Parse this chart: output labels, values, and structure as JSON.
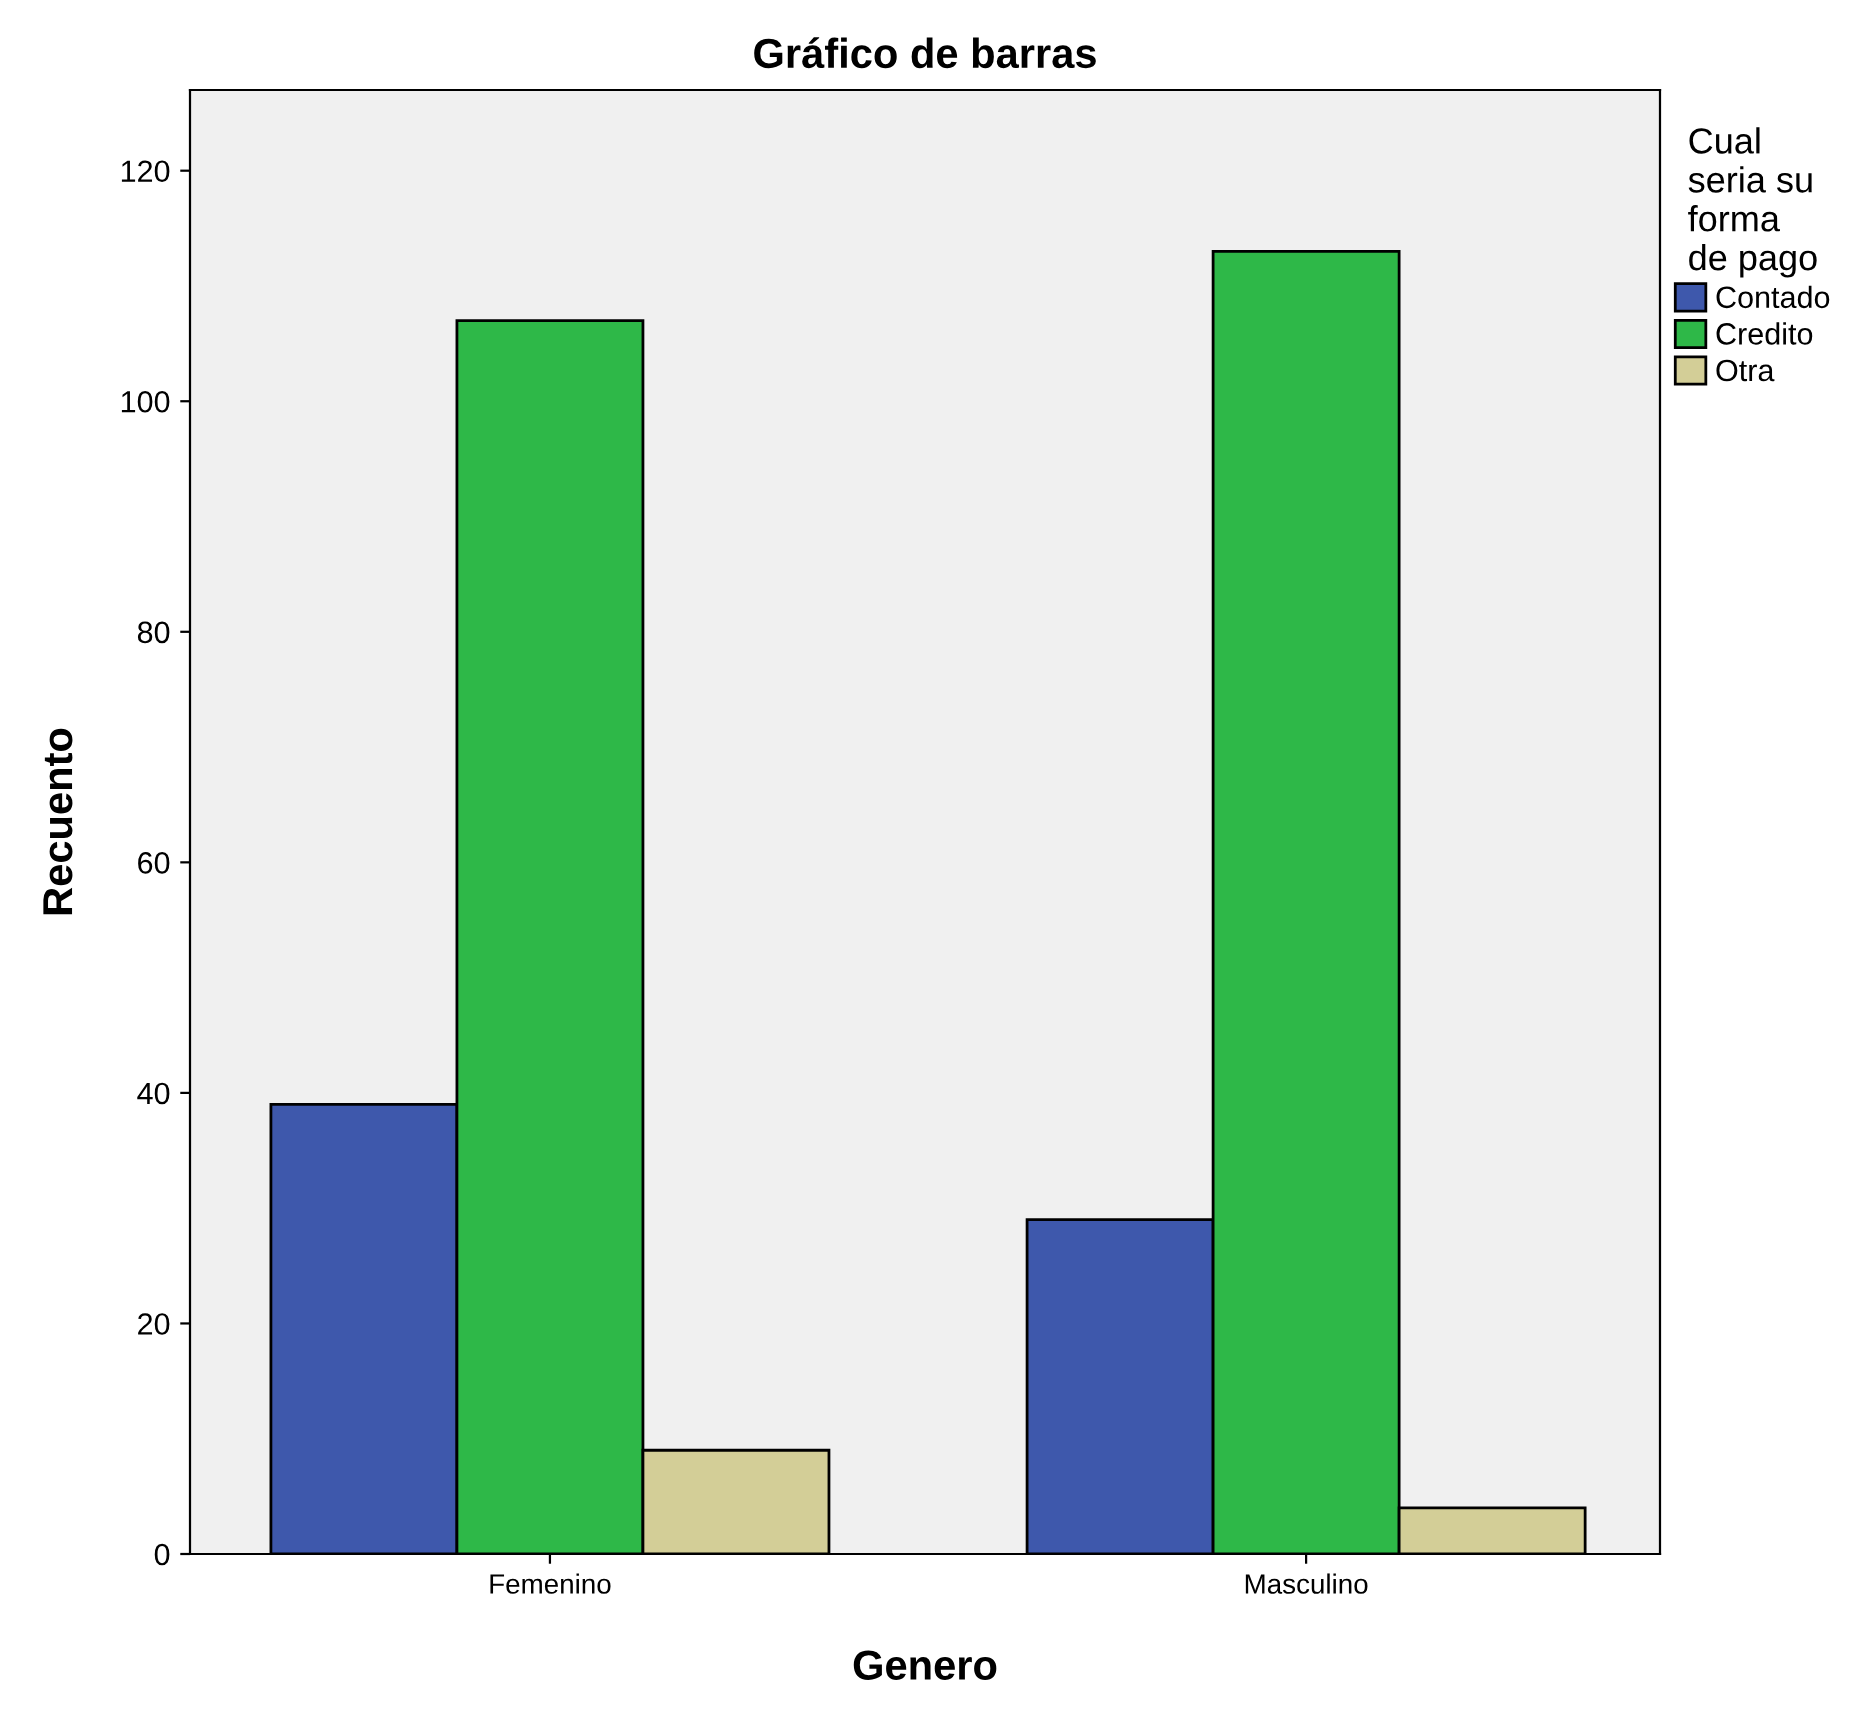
{
  "chart_data": {
    "type": "bar",
    "title": "Gráfico de barras",
    "xlabel": "Genero",
    "ylabel": "Recuento",
    "legend_title": "Cual\nseria su\nforma\nde pago",
    "categories": [
      "Femenino",
      "Masculino"
    ],
    "series": [
      {
        "name": "Contado",
        "color": "#3e58ac",
        "values": [
          39,
          29
        ]
      },
      {
        "name": "Credito",
        "color": "#2eb848",
        "values": [
          107,
          113
        ]
      },
      {
        "name": "Otra",
        "color": "#d3ce97",
        "values": [
          9,
          4
        ]
      }
    ],
    "ylim": [
      0,
      127
    ],
    "yticks": [
      0,
      20,
      40,
      60,
      80,
      100,
      120
    ],
    "grid": false,
    "legend": "right"
  }
}
